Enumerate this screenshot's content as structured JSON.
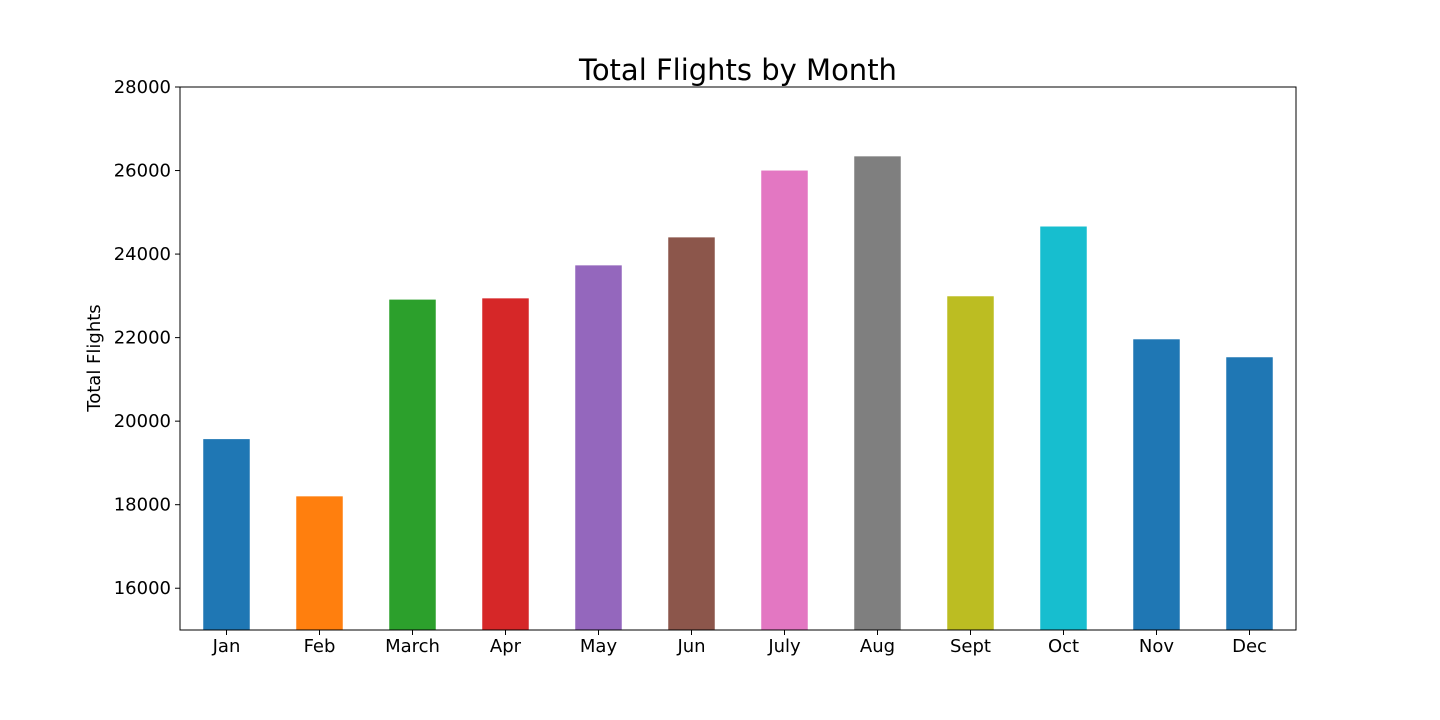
{
  "chart_data": {
    "type": "bar",
    "title": "Total Flights by Month",
    "xlabel": "",
    "ylabel": "Total Flights",
    "categories": [
      "Jan",
      "Feb",
      "March",
      "Apr",
      "May",
      "Jun",
      "July",
      "Aug",
      "Sept",
      "Oct",
      "Nov",
      "Dec"
    ],
    "values": [
      19570,
      18200,
      22910,
      22940,
      23730,
      24400,
      26000,
      26340,
      22990,
      24660,
      21960,
      21530
    ],
    "colors": [
      "#1f77b4",
      "#ff7f0e",
      "#2ca02c",
      "#d62728",
      "#9467bd",
      "#8c564b",
      "#e377c2",
      "#7f7f7f",
      "#bcbd22",
      "#17becf",
      "#1f77b4",
      "#1f77b4"
    ],
    "ylim": [
      15000,
      28000
    ],
    "yticks": [
      16000,
      18000,
      20000,
      22000,
      24000,
      26000,
      28000
    ],
    "grid": false,
    "legend": false
  }
}
